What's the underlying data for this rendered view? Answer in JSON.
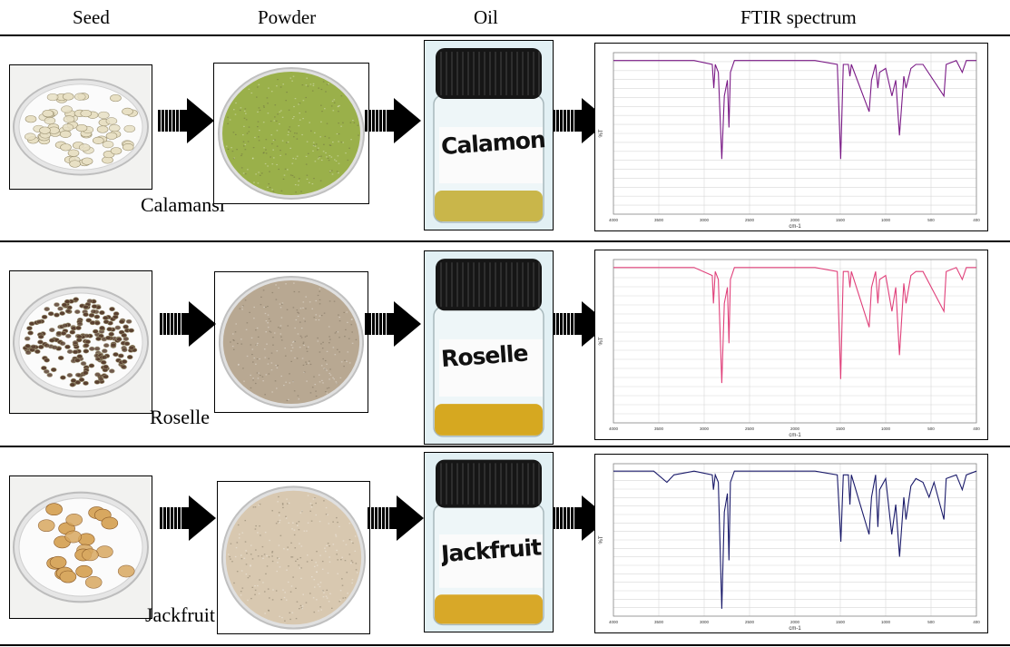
{
  "headers": {
    "seed": "Seed",
    "powder": "Powder",
    "oil": "Oil",
    "ftir": "FTIR spectrum"
  },
  "rows": [
    {
      "name": "Calamansi",
      "jar_label": "Calamon",
      "spectrum_color": "#7a1a86",
      "seed_color": "#e8e0c4",
      "powder_color": "#9ab04a",
      "oil_color": "#c9b64a"
    },
    {
      "name": "Roselle",
      "jar_label": "Roselle",
      "spectrum_color": "#e0407a",
      "seed_color": "#5a4030",
      "powder_color": "#b8a892",
      "oil_color": "#d6a820"
    },
    {
      "name": "Jackfruit",
      "jar_label": "Jackfruit",
      "spectrum_color": "#1a1a6a",
      "seed_color": "#d8a860",
      "powder_color": "#d8c8b0",
      "oil_color": "#d8a828"
    }
  ],
  "ftir_axis": {
    "x_label": "cm-1",
    "x_ticks": [
      "4000",
      "3500",
      "3000",
      "2500",
      "2000",
      "1500",
      "1000",
      "500",
      "400"
    ],
    "y_label": "%T"
  }
}
